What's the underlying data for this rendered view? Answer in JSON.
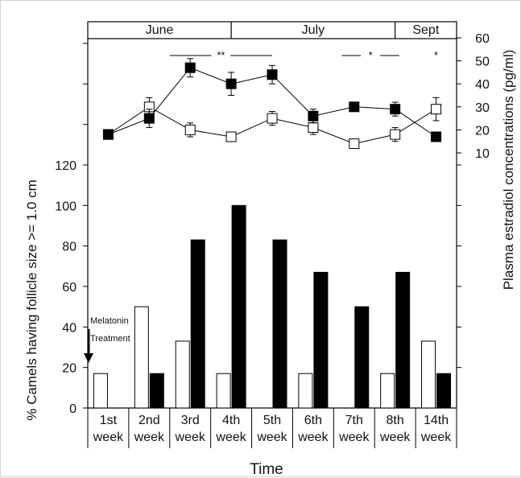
{
  "chart_data": {
    "type": "bar",
    "categories": [
      "1st week",
      "2nd week",
      "3rd week",
      "4th week",
      "5th week",
      "6th week",
      "7th week",
      "8th week",
      "14th week"
    ],
    "category_lines": [
      [
        "1st",
        "week"
      ],
      [
        "2nd",
        "week"
      ],
      [
        "3rd",
        "week"
      ],
      [
        "4th",
        "week"
      ],
      [
        "5th",
        "week"
      ],
      [
        "6th",
        "week"
      ],
      [
        "7th",
        "week"
      ],
      [
        "8th",
        "week"
      ],
      [
        "14th",
        "week"
      ]
    ],
    "bar_series": [
      {
        "style": "open",
        "values": [
          17,
          50,
          33,
          17,
          0,
          17,
          0,
          17,
          33
        ]
      },
      {
        "style": "filled",
        "values": [
          0,
          17,
          83,
          100,
          83,
          67,
          50,
          67,
          17
        ]
      }
    ],
    "line_series": [
      {
        "style": "open-square",
        "values": [
          18,
          30,
          20,
          17,
          25,
          21,
          14,
          18,
          29
        ],
        "errors": [
          0,
          4,
          3,
          2,
          3,
          3,
          1,
          3,
          5
        ]
      },
      {
        "style": "filled-square",
        "values": [
          18,
          25,
          47,
          40,
          44,
          26,
          30,
          29,
          17
        ],
        "errors": [
          0,
          4,
          4,
          5,
          4,
          3,
          2,
          3,
          0
        ]
      }
    ],
    "ylabel": "% Camels having follicle size >= 1.0 cm",
    "ylabel_right": "Plasma estradiol concentrations (pg/ml)",
    "xlabel": "Time",
    "ylim": [
      0,
      120
    ],
    "yticks": [
      "0",
      "20",
      "40",
      "60",
      "80",
      "100",
      "120"
    ],
    "ylim_right": [
      10,
      60
    ],
    "yticks_right": [
      "10",
      "20",
      "30",
      "40",
      "50",
      "60"
    ],
    "months": [
      "June",
      "July",
      "Sept"
    ],
    "month_spans": [
      [
        0,
        3.5
      ],
      [
        3.5,
        7.5
      ],
      [
        7.5,
        9
      ]
    ],
    "significance": [
      {
        "text": "**",
        "from": 2,
        "to": 4.5
      },
      {
        "text": "*",
        "from": 6.2,
        "to": 7.6
      },
      {
        "text": "*",
        "from": 8.5,
        "to": 8.5
      }
    ],
    "annotation": {
      "lines": [
        "Melatonin",
        "Treatment"
      ],
      "at_category": 0,
      "arrow_to_value": 22
    }
  }
}
